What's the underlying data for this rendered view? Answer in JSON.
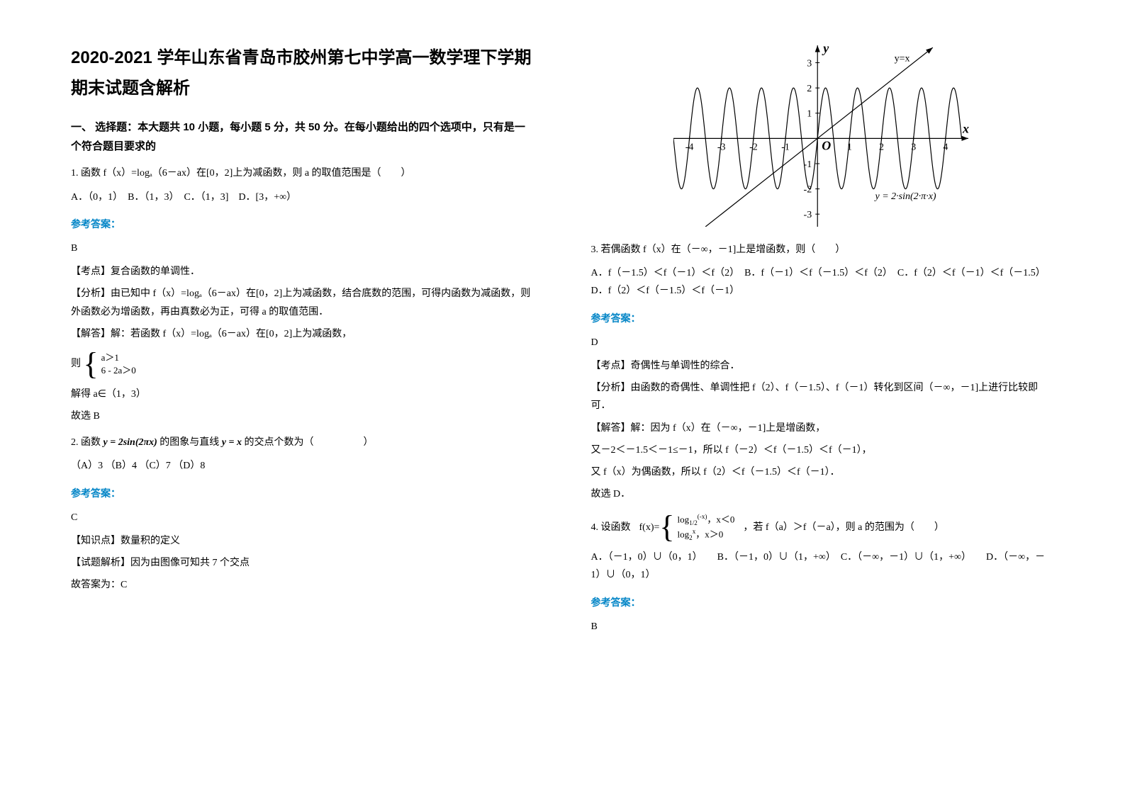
{
  "title": "2020-2021 学年山东省青岛市胶州第七中学高一数学理下学期期末试题含解析",
  "section1_header": "一、 选择题：本大题共 10 小题，每小题 5 分，共 50 分。在每小题给出的四个选项中，只有是一个符合题目要求的",
  "q1": {
    "text": "1. 函数 f（x）=logₐ（6－ax）在[0，2]上为减函数，则 a 的取值范围是（　　）",
    "options": "A．（0，1）　B．（1，3）　C．（1，3]　D．[3，+∞）",
    "answer_label": "参考答案：",
    "answer": "B",
    "point": "【考点】复合函数的单调性．",
    "analysis": "【分析】由已知中 f（x）=logₐ（6－ax）在[0，2]上为减函数，结合底数的范围，可得内函数为减函数，则外函数必为增函数，再由真数必为正，可得 a 的取值范围．",
    "solve1": "【解答】解：若函数 f（x）=logₐ（6－ax）在[0，2]上为减函数，",
    "solve2": "则",
    "brace_top": "a＞1",
    "brace_bot": "6 - 2a＞0",
    "solve3": "解得 a∈（1，3）",
    "solve4": "故选 B"
  },
  "q2": {
    "text_pre": "2. 函数",
    "formula": "y = 2sin(2πx)",
    "text_mid": "的图象与直线",
    "formula2": "y = x",
    "text_post": "的交点个数为（　　　　　）",
    "options": "（A）3 （B）4 （C）7 （D）8",
    "answer_label": "参考答案：",
    "answer": "C",
    "point": "【知识点】数量积的定义",
    "analysis": "【试题解析】因为由图像可知共 7 个交点",
    "solve": "故答案为：C"
  },
  "chart": {
    "xlim": [
      -4.5,
      4.8
    ],
    "ylim": [
      -3.5,
      3.8
    ],
    "xticks": [
      -4,
      -3,
      -2,
      -1,
      1,
      2,
      3,
      4
    ],
    "yticks": [
      -3,
      -2,
      -1,
      1,
      2,
      3
    ],
    "x_label": "x",
    "y_label": "y",
    "origin_label": "O",
    "line_label": "y=x",
    "sine_label": "y = 2·sin(2·π·x)",
    "axis_color": "#000000",
    "line_color": "#000000",
    "sine_color": "#000000",
    "label_fontsize": 14,
    "axis_label_fontsize": 18
  },
  "q3": {
    "text": "3. 若偶函数 f（x）在（－∞，－1]上是增函数，则（　　）",
    "options": "A．f（－1.5）＜f（－1）＜f（2）　B．f（－1）＜f（－1.5）＜f（2）　C．f（2）＜f（－1）＜f（－1.5）　　D．f（2）＜f（－1.5）＜f（－1）",
    "answer_label": "参考答案：",
    "answer": "D",
    "point": "【考点】奇偶性与单调性的综合．",
    "analysis": "【分析】由函数的奇偶性、单调性把 f（2）、f（－1.5）、f（－1）转化到区间（－∞，－1]上进行比较即可．",
    "solve1": "【解答】解：因为 f（x）在（－∞，－1]上是增函数，",
    "solve2": "又－2＜－1.5＜－1≤－1，所以 f（－2）＜f（－1.5）＜f（－1），",
    "solve3": "又 f（x）为偶函数，所以 f（2）＜f（－1.5）＜f（－1）．",
    "solve4": "故选 D．"
  },
  "q4": {
    "text_pre": "4. 设函数",
    "fx_label": "f(x)=",
    "piece1": "log_{1/2}^{(-x)}，x＜0",
    "piece2": "log_2^x，x＞0",
    "text_post": "，若 f（a）＞f（－a），则 a 的范围为（　　）",
    "options": "A．（－1，0）∪（0，1）　　B．（－1，0）∪（1，+∞）　C．（－∞，－1）∪（1，+∞）　　D．（－∞，－1）∪（0，1）",
    "answer_label": "参考答案：",
    "answer": "B"
  }
}
